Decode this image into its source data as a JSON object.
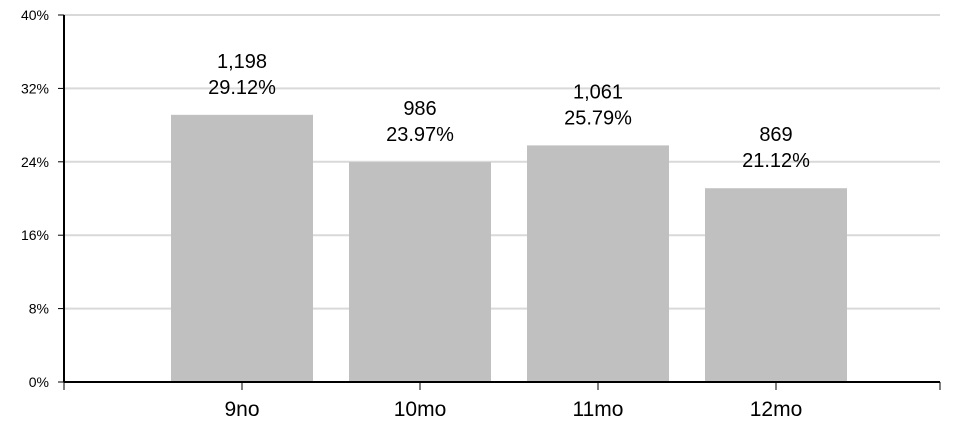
{
  "chart_data": {
    "type": "bar",
    "categories": [
      "9no",
      "10mo",
      "11mo",
      "12mo"
    ],
    "counts": [
      "1,198",
      "986",
      "1,061",
      "869"
    ],
    "values": [
      29.12,
      23.97,
      25.79,
      21.12
    ],
    "value_labels": [
      "29.12%",
      "23.97%",
      "25.79%",
      "21.12%"
    ],
    "ylim": [
      0,
      40
    ],
    "yticks": [
      0,
      8,
      16,
      24,
      32,
      40
    ],
    "ytick_labels": [
      "0%",
      "8%",
      "16%",
      "24%",
      "32%",
      "40%"
    ],
    "title": "",
    "xlabel": "",
    "ylabel": "",
    "grid": true,
    "bar_color": "#c0c0c0",
    "grid_color": "#d9d9d9",
    "axis_color": "#000000"
  }
}
